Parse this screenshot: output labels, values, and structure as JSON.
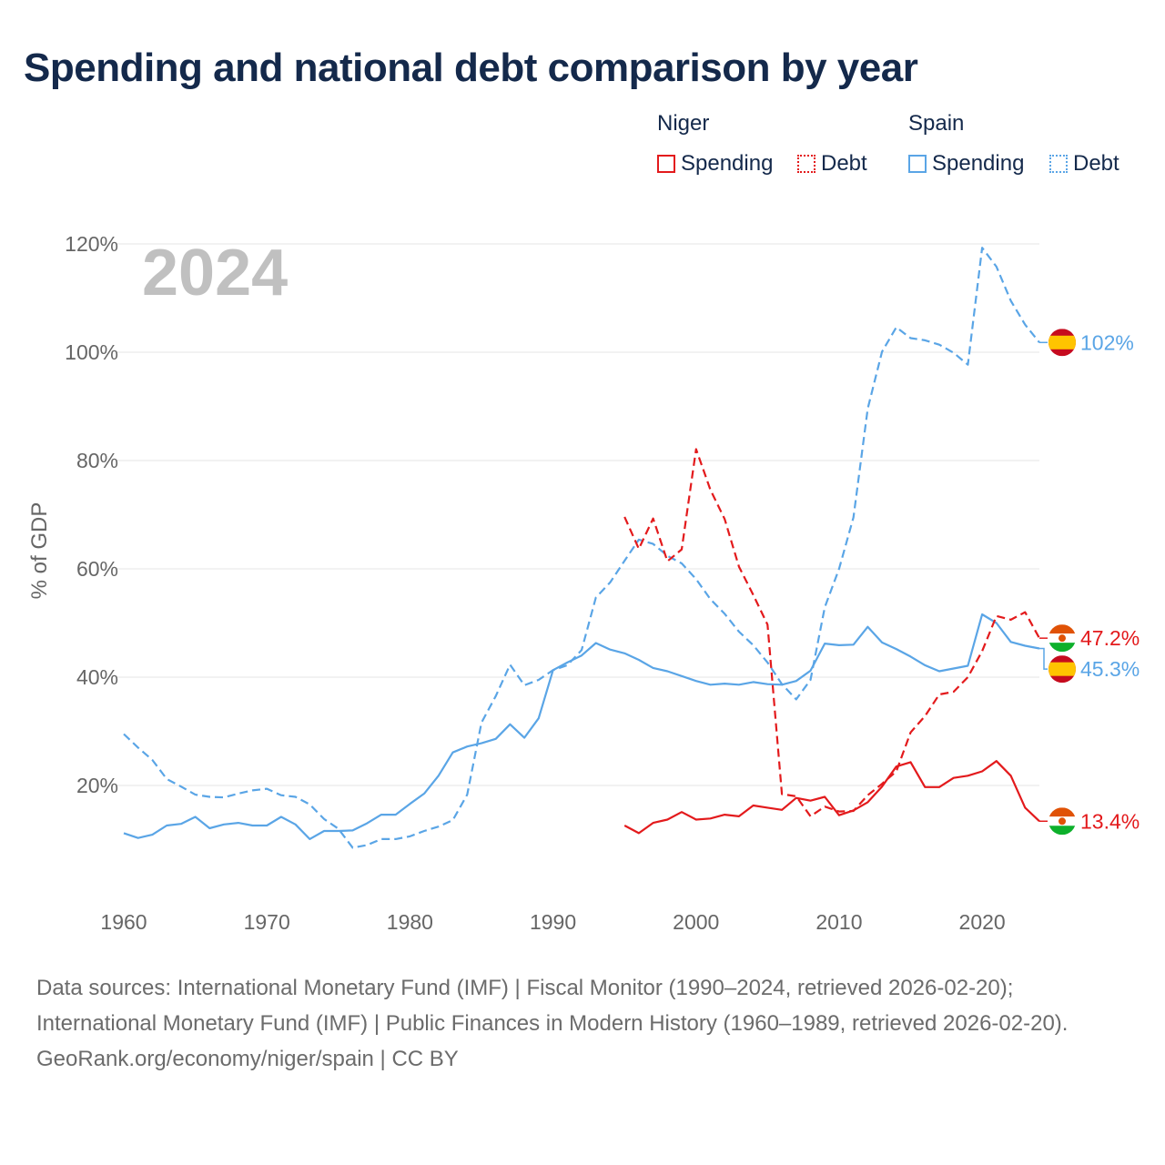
{
  "title": "Spending and national debt comparison by year",
  "legend": {
    "groups": [
      {
        "name": "Niger",
        "items": [
          {
            "label": "Spending",
            "style": "solid",
            "color": "#e31a1c"
          },
          {
            "label": "Debt",
            "style": "dotted",
            "color": "#e31a1c"
          }
        ]
      },
      {
        "name": "Spain",
        "items": [
          {
            "label": "Spending",
            "style": "solid",
            "color": "#5aa5e6"
          },
          {
            "label": "Debt",
            "style": "dotted",
            "color": "#5aa5e6"
          }
        ]
      }
    ]
  },
  "colors": {
    "niger": "#e31a1c",
    "spain": "#5aa5e6",
    "title": "#14294b",
    "grid": "#e6e6e6",
    "year_watermark": "#c0c0c0"
  },
  "chart_data": {
    "type": "line",
    "title": "Spending and national debt comparison by year",
    "xlabel": "",
    "ylabel": "% of GDP",
    "xlim": [
      1960,
      2024
    ],
    "ylim": [
      0,
      120
    ],
    "x_ticks": [
      1960,
      1970,
      1980,
      1990,
      2000,
      2010,
      2020
    ],
    "y_ticks": [
      20,
      40,
      60,
      80,
      100,
      120
    ],
    "y_tick_labels": [
      "20%",
      "40%",
      "60%",
      "80%",
      "100%",
      "120%"
    ],
    "x_tick_labels": [
      "1960",
      "1970",
      "1980",
      "1990",
      "2000",
      "2010",
      "2020"
    ],
    "year_label": "2024",
    "series": [
      {
        "name": "Spain Spending",
        "country": "Spain",
        "kind": "spending",
        "color": "#5aa5e6",
        "dash": "solid",
        "x": [
          1960,
          1961,
          1962,
          1963,
          1964,
          1965,
          1966,
          1967,
          1968,
          1969,
          1970,
          1971,
          1972,
          1973,
          1974,
          1975,
          1976,
          1977,
          1978,
          1979,
          1980,
          1981,
          1982,
          1983,
          1984,
          1985,
          1986,
          1987,
          1988,
          1989,
          1990,
          1991,
          1992,
          1993,
          1994,
          1995,
          1996,
          1997,
          1998,
          1999,
          2000,
          2001,
          2002,
          2003,
          2004,
          2005,
          2006,
          2007,
          2008,
          2009,
          2010,
          2011,
          2012,
          2013,
          2014,
          2015,
          2016,
          2017,
          2018,
          2019,
          2020,
          2021,
          2022,
          2023,
          2024
        ],
        "values": [
          11.2,
          10.3,
          10.9,
          12.6,
          12.9,
          14.2,
          12.1,
          12.8,
          13.1,
          12.6,
          12.6,
          14.2,
          12.8,
          10.1,
          11.6,
          11.6,
          11.7,
          13,
          14.6,
          14.6,
          16.6,
          18.5,
          21.8,
          26.1,
          27.2,
          27.8,
          28.6,
          31.3,
          28.8,
          32.4,
          41.3,
          42.7,
          44,
          46.3,
          45.1,
          44.4,
          43.2,
          41.7,
          41.1,
          40.2,
          39.3,
          38.6,
          38.8,
          38.6,
          39.1,
          38.7,
          38.6,
          39.3,
          41.2,
          46.2,
          45.9,
          46,
          49.3,
          46.4,
          45.2,
          43.8,
          42.2,
          41.1,
          41.6,
          42.1,
          51.6,
          50,
          46.5,
          45.8,
          45.3
        ],
        "end_label": "45.3%"
      },
      {
        "name": "Spain Debt",
        "country": "Spain",
        "kind": "debt",
        "color": "#5aa5e6",
        "dash": "dashed",
        "x": [
          1960,
          1961,
          1962,
          1963,
          1964,
          1965,
          1966,
          1967,
          1968,
          1969,
          1970,
          1971,
          1972,
          1973,
          1974,
          1975,
          1976,
          1977,
          1978,
          1979,
          1980,
          1981,
          1982,
          1983,
          1984,
          1985,
          1986,
          1987,
          1988,
          1989,
          1990,
          1991,
          1992,
          1993,
          1994,
          1995,
          1996,
          1997,
          1998,
          1999,
          2000,
          2001,
          2002,
          2003,
          2004,
          2005,
          2006,
          2007,
          2008,
          2009,
          2010,
          2011,
          2012,
          2013,
          2014,
          2015,
          2016,
          2017,
          2018,
          2019,
          2020,
          2021,
          2022,
          2023,
          2024
        ],
        "values": [
          29.5,
          27,
          24.7,
          21.2,
          19.8,
          18.3,
          17.9,
          17.8,
          18.5,
          19.1,
          19.4,
          18.2,
          17.9,
          16.5,
          13.8,
          12,
          8.5,
          9,
          10.1,
          10.1,
          10.6,
          11.6,
          12.4,
          13.6,
          18.3,
          31.6,
          36.5,
          42.3,
          38.5,
          39.5,
          41.3,
          42.2,
          45,
          54.7,
          57.5,
          61.5,
          65.4,
          64.6,
          62.4,
          61,
          58.1,
          54.4,
          51.7,
          48.4,
          45.9,
          42.7,
          38.7,
          35.9,
          39.5,
          52.9,
          60,
          69.5,
          89.6,
          100.1,
          104.6,
          102.6,
          102.2,
          101.4,
          99.9,
          97.7,
          119.3,
          115.8,
          109.5,
          105.1,
          101.8
        ],
        "end_label": "102%"
      },
      {
        "name": "Niger Spending",
        "country": "Niger",
        "kind": "spending",
        "color": "#e31a1c",
        "dash": "solid",
        "x": [
          1995,
          1996,
          1997,
          1998,
          1999,
          2000,
          2001,
          2002,
          2003,
          2004,
          2005,
          2006,
          2007,
          2008,
          2009,
          2010,
          2011,
          2012,
          2013,
          2014,
          2015,
          2016,
          2017,
          2018,
          2019,
          2020,
          2021,
          2022,
          2023,
          2024
        ],
        "values": [
          12.6,
          11.2,
          13.1,
          13.7,
          15.1,
          13.7,
          13.9,
          14.6,
          14.3,
          16.3,
          15.9,
          15.5,
          17.7,
          17.2,
          17.9,
          14.5,
          15.4,
          16.9,
          19.8,
          23.5,
          24.3,
          19.7,
          19.7,
          21.4,
          21.8,
          22.6,
          24.5,
          21.8,
          15.9,
          13.4
        ],
        "end_label": "13.4%"
      },
      {
        "name": "Niger Debt",
        "country": "Niger",
        "kind": "debt",
        "color": "#e31a1c",
        "dash": "dashed",
        "x": [
          1995,
          1996,
          1997,
          1998,
          1999,
          2000,
          2001,
          2002,
          2003,
          2004,
          2005,
          2006,
          2007,
          2008,
          2009,
          2010,
          2011,
          2012,
          2013,
          2014,
          2015,
          2016,
          2017,
          2018,
          2019,
          2020,
          2021,
          2022,
          2023,
          2024
        ],
        "values": [
          69.6,
          63.7,
          69.3,
          61.4,
          63.6,
          82.1,
          74.6,
          69.2,
          60.4,
          55.2,
          49.7,
          18.4,
          18,
          14.3,
          16.1,
          15.2,
          15.3,
          18.2,
          20.3,
          22.6,
          29.8,
          32.8,
          36.8,
          37.3,
          40,
          44.8,
          51.3,
          50.6,
          52,
          47.2
        ],
        "end_label": "47.2%"
      }
    ]
  },
  "footer": {
    "sources": "Data sources: International Monetary Fund (IMF) | Fiscal Monitor (1990–2024, retrieved 2026-02-20); International Monetary Fund (IMF) | Public Finances in Modern History (1960–1989, retrieved 2026-02-20).",
    "credit": "GeoRank.org/economy/niger/spain | CC BY"
  }
}
